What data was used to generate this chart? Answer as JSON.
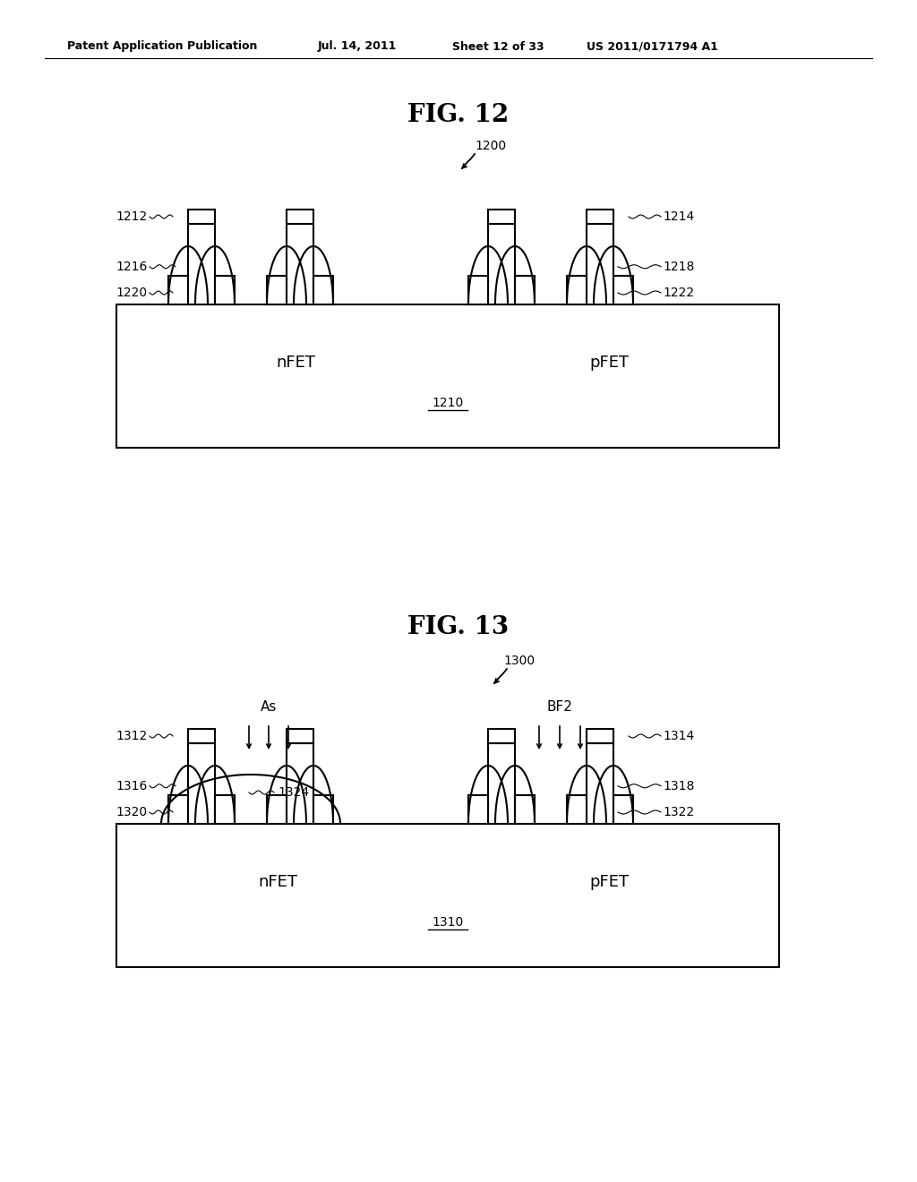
{
  "bg_color": "#ffffff",
  "header_text": "Patent Application Publication",
  "header_date": "Jul. 14, 2011",
  "header_sheet": "Sheet 12 of 33",
  "header_patent": "US 2011/0171794 A1",
  "fig12_title": "FIG. 12",
  "fig12_label": "1200",
  "fig13_title": "FIG. 13",
  "fig13_label": "1300",
  "substrate12_label": "1210",
  "substrate13_label": "1310",
  "nfet_label": "nFET",
  "pfet_label": "pFET",
  "as_label": "As",
  "bf2_label": "BF2",
  "fig13_cap_label": "1324",
  "line_color": "#000000",
  "font_size_title": 20,
  "font_size_label": 10,
  "font_size_header": 9,
  "font_size_fet": 13
}
